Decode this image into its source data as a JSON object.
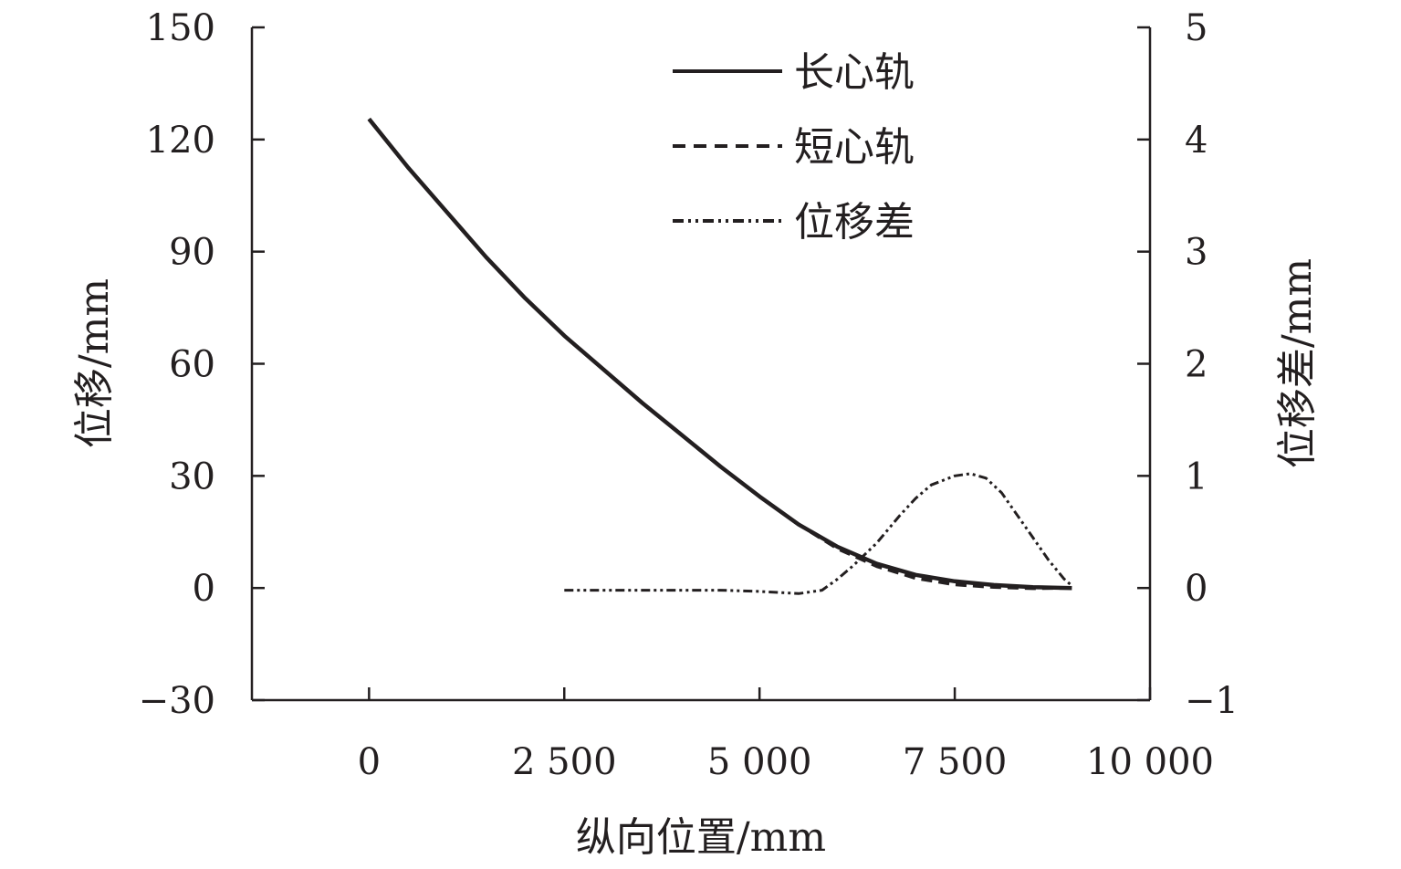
{
  "chart_data": {
    "type": "line",
    "xlabel": "纵向位置/mm",
    "ylabel_left": "位移/mm",
    "ylabel_right": "位移差/mm",
    "xlim": [
      -1500,
      10000
    ],
    "ylim_left": [
      -30,
      150
    ],
    "ylim_right": [
      -1,
      5
    ],
    "x_ticks": [
      0,
      2500,
      5000,
      7500,
      10000
    ],
    "x_tick_labels": [
      "0",
      "2 500",
      "5 000",
      "7 500",
      "10 000"
    ],
    "y_left_ticks": [
      -30,
      0,
      30,
      60,
      90,
      120,
      150
    ],
    "y_left_tick_labels": [
      "−30",
      "0",
      "30",
      "60",
      "90",
      "120",
      "150"
    ],
    "y_right_ticks": [
      -1,
      0,
      1,
      2,
      3,
      4,
      5
    ],
    "y_right_tick_labels": [
      "−1",
      "0",
      "1",
      "2",
      "3",
      "4",
      "5"
    ],
    "grid": false,
    "legend_position": "top-center",
    "series": [
      {
        "name": "长心轨",
        "axis": "left",
        "style": "solid",
        "x": [
          0,
          500,
          1000,
          1500,
          2000,
          2500,
          3000,
          3500,
          4000,
          4500,
          5000,
          5500,
          6000,
          6500,
          7000,
          7500,
          8000,
          8500,
          9000
        ],
        "values": [
          125.5,
          112.5,
          100.5,
          88.5,
          77.5,
          67.5,
          58.5,
          49.5,
          41,
          32.5,
          24.5,
          17,
          11,
          6.5,
          3.5,
          1.8,
          0.8,
          0.2,
          0
        ]
      },
      {
        "name": "短心轨",
        "axis": "left",
        "style": "dashed",
        "x": [
          0,
          500,
          1000,
          1500,
          2000,
          2500,
          3000,
          3500,
          4000,
          4500,
          5000,
          5500,
          6000,
          6500,
          7000,
          7500,
          8000,
          8500,
          9000
        ],
        "values": [
          125.5,
          112.5,
          100.5,
          88.5,
          77.5,
          67.5,
          58.5,
          49.5,
          41,
          32.5,
          24.5,
          17,
          10.5,
          5.8,
          2.6,
          0.9,
          0.2,
          -0.1,
          0
        ]
      },
      {
        "name": "位移差",
        "axis": "right",
        "style": "dash-dot",
        "x": [
          2500,
          3000,
          3500,
          4000,
          4500,
          5000,
          5500,
          5800,
          6000,
          6200,
          6500,
          6800,
          7000,
          7200,
          7500,
          7700,
          7900,
          8100,
          8300,
          8500,
          8700,
          8900,
          9000
        ],
        "values": [
          -0.02,
          -0.02,
          -0.02,
          -0.02,
          -0.02,
          -0.03,
          -0.05,
          -0.02,
          0.08,
          0.2,
          0.4,
          0.65,
          0.8,
          0.92,
          1.0,
          1.02,
          0.98,
          0.85,
          0.65,
          0.45,
          0.25,
          0.08,
          0.02
        ]
      }
    ]
  },
  "colors": {
    "ink": "#231f20",
    "background": "#ffffff"
  }
}
